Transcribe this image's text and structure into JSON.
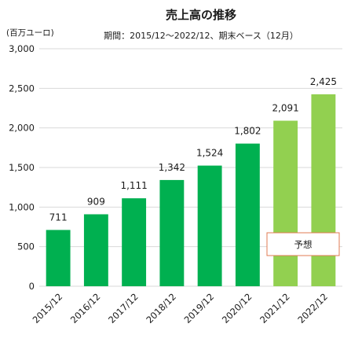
{
  "chart_data": {
    "type": "bar",
    "title": "売上高の推移",
    "subtitle": "期間：2015/12～2022/12、期末ベース（12月）",
    "ylabel": "(百万ユーロ)",
    "xlabel": "",
    "categories": [
      "2015/12",
      "2016/12",
      "2017/12",
      "2018/12",
      "2019/12",
      "2020/12",
      "2021/12",
      "2022/12"
    ],
    "values": [
      711,
      909,
      1111,
      1342,
      1524,
      1802,
      2091,
      2425
    ],
    "data_labels": [
      "711",
      "909",
      "1,111",
      "1,342",
      "1,524",
      "1,802",
      "2,091",
      "2,425"
    ],
    "forecast": [
      false,
      false,
      false,
      false,
      false,
      false,
      true,
      true
    ],
    "ylim": [
      0,
      3000
    ],
    "yticks": [
      0,
      500,
      1000,
      1500,
      2000,
      2500,
      3000
    ],
    "ytick_labels": [
      "0",
      "500",
      "1,000",
      "1,500",
      "2,000",
      "2,500",
      "3,000"
    ],
    "grid": true,
    "annotation": "予想",
    "colors": {
      "actual": "#00b050",
      "forecast": "#92d050",
      "grid": "#d9d9d9",
      "annotation_border": "#e07b53"
    }
  }
}
